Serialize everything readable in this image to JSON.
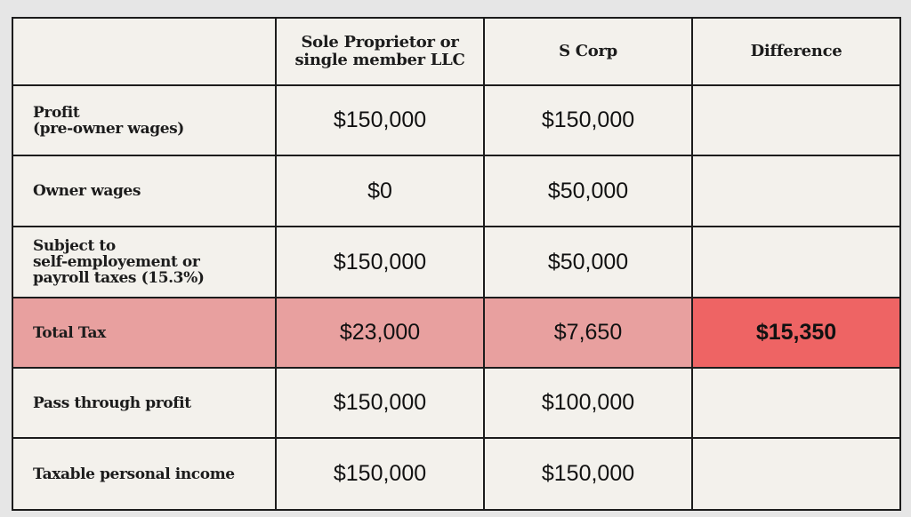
{
  "colors": {
    "page_background": "#e6e6e6",
    "cell_background": "#f3f1ec",
    "grid_line": "#1c1c1c",
    "total_row_highlight": "#e8a09f",
    "difference_highlight": "#ee6464"
  },
  "table": {
    "headers": {
      "corner": "",
      "col1_line1": "Sole Proprietor or",
      "col1_line2": "single member LLC",
      "col2": "S Corp",
      "col3": "Difference"
    },
    "rows": [
      {
        "label_lines": [
          "Profit",
          "(pre-owner wages)"
        ],
        "sole": "$150,000",
        "scorp": "$150,000",
        "difference": ""
      },
      {
        "label_lines": [
          "Owner wages"
        ],
        "sole": "$0",
        "scorp": "$50,000",
        "difference": ""
      },
      {
        "label_lines": [
          "Subject to",
          "self-employement or",
          "payroll taxes (15.3%)"
        ],
        "sole": "$150,000",
        "scorp": "$50,000",
        "difference": ""
      },
      {
        "label_lines": [
          "Total Tax"
        ],
        "sole": "$23,000",
        "scorp": "$7,650",
        "difference": "$15,350"
      },
      {
        "label_lines": [
          "Pass through profit"
        ],
        "sole": "$150,000",
        "scorp": "$100,000",
        "difference": ""
      },
      {
        "label_lines": [
          "Taxable personal income"
        ],
        "sole": "$150,000",
        "scorp": "$150,000",
        "difference": ""
      }
    ]
  }
}
